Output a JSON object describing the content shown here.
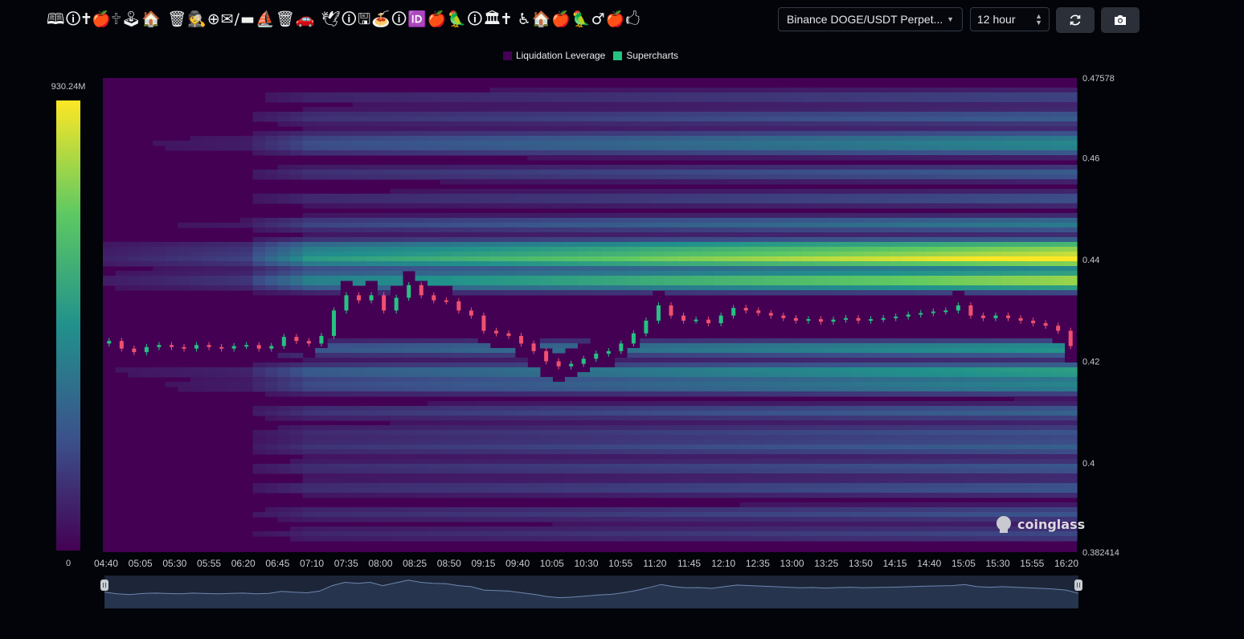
{
  "header": {
    "title": "🕮🛈🕇🍎🕆🕹🏠 🗑🕵⊕✉/▬⛵🗑🚗 🕊🛈🖫🍝🛈🆔🍎🦜🛈🏛🕇 ♿🏠🍎🦜♂🍎🖒",
    "pair_select": "Binance DOGE/USDT Perpet...",
    "range_select": "12 hour",
    "refresh_icon": "refresh-icon",
    "camera_icon": "camera-icon"
  },
  "chart_data": {
    "type": "heatmap",
    "title": "",
    "legend": [
      {
        "name": "Liquidation Leverage",
        "color": "#440154"
      },
      {
        "name": "Supercharts",
        "color": "#26c281"
      }
    ],
    "legend_position": "top-center",
    "colorscale": {
      "max_label": "930.24M",
      "min_label": "0",
      "max": 930240000,
      "min": 0,
      "colors": [
        "#440154",
        "#3b528b",
        "#21918c",
        "#5ec962",
        "#fde725"
      ]
    },
    "y_axis": {
      "min": 0.382414,
      "max": 0.47578,
      "tick_labels": [
        "0.47578",
        "0.46",
        "0.44",
        "0.42",
        "0.4",
        "0.382414"
      ]
    },
    "x_axis": {
      "tick_labels": [
        "04:40",
        "05:05",
        "05:30",
        "05:55",
        "06:20",
        "06:45",
        "07:10",
        "07:35",
        "08:00",
        "08:25",
        "08:50",
        "09:15",
        "09:40",
        "10:05",
        "10:30",
        "10:55",
        "11:20",
        "11:45",
        "12:10",
        "12:35",
        "13:00",
        "13:25",
        "13:50",
        "14:15",
        "14:40",
        "15:05",
        "15:30",
        "15:55",
        "16:20"
      ]
    },
    "price": [
      0.424,
      0.4225,
      0.4218,
      0.4228,
      0.4232,
      0.4228,
      0.4225,
      0.4232,
      0.4228,
      0.4225,
      0.423,
      0.4232,
      0.4225,
      0.423,
      0.4248,
      0.424,
      0.4235,
      0.425,
      0.43,
      0.433,
      0.432,
      0.433,
      0.43,
      0.4325,
      0.435,
      0.433,
      0.432,
      0.4318,
      0.43,
      0.429,
      0.426,
      0.4255,
      0.425,
      0.4235,
      0.422,
      0.42,
      0.419,
      0.4195,
      0.4205,
      0.4215,
      0.422,
      0.4235,
      0.4255,
      0.428,
      0.431,
      0.429,
      0.428,
      0.4282,
      0.4275,
      0.429,
      0.4305,
      0.43,
      0.4295,
      0.429,
      0.4285,
      0.428,
      0.4283,
      0.4278,
      0.4282,
      0.4285,
      0.428,
      0.4283,
      0.4285,
      0.4288,
      0.4292,
      0.4295,
      0.4298,
      0.43,
      0.431,
      0.429,
      0.4285,
      0.429,
      0.4285,
      0.428,
      0.4275,
      0.427,
      0.426,
      0.423
    ],
    "bands": [
      {
        "price": 0.44,
        "intensity": 1.0
      },
      {
        "price": 0.4425,
        "intensity": 0.72
      },
      {
        "price": 0.4365,
        "intensity": 0.62
      },
      {
        "price": 0.435,
        "intensity": 0.5
      },
      {
        "price": 0.447,
        "intensity": 0.42
      },
      {
        "price": 0.418,
        "intensity": 0.58
      },
      {
        "price": 0.4225,
        "intensity": 0.55
      },
      {
        "price": 0.415,
        "intensity": 0.45
      },
      {
        "price": 0.462,
        "intensity": 0.38
      },
      {
        "price": 0.464,
        "intensity": 0.32
      },
      {
        "price": 0.468,
        "intensity": 0.3
      },
      {
        "price": 0.457,
        "intensity": 0.3
      },
      {
        "price": 0.41,
        "intensity": 0.32
      },
      {
        "price": 0.403,
        "intensity": 0.3
      },
      {
        "price": 0.399,
        "intensity": 0.28
      },
      {
        "price": 0.395,
        "intensity": 0.28
      },
      {
        "price": 0.39,
        "intensity": 0.26
      },
      {
        "price": 0.386,
        "intensity": 0.22
      },
      {
        "price": 0.452,
        "intensity": 0.26
      },
      {
        "price": 0.472,
        "intensity": 0.22
      },
      {
        "price": 0.406,
        "intensity": 0.25
      }
    ],
    "watermark": "coinglass"
  }
}
